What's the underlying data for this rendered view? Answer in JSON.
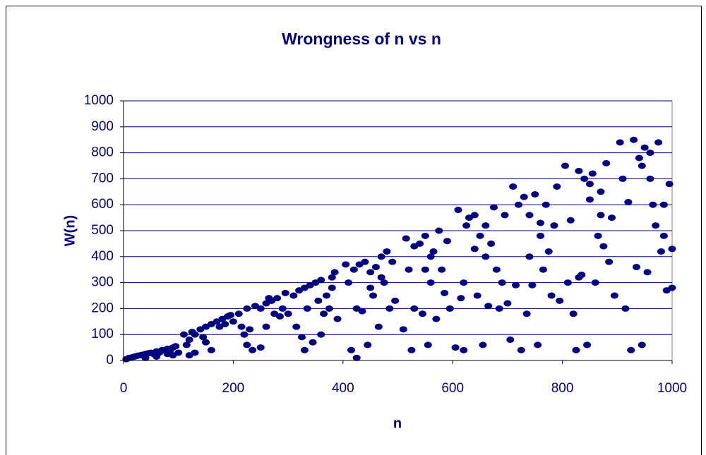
{
  "chart_data": {
    "type": "scatter",
    "title": "Wrongness of n vs n",
    "xlabel": "n",
    "ylabel": "W(n)",
    "color": "#000080",
    "grid": true,
    "xlim": [
      0,
      1000
    ],
    "ylim": [
      0,
      1000
    ],
    "xticks": [
      0,
      200,
      400,
      600,
      800,
      1000
    ],
    "yticks": [
      0,
      100,
      200,
      300,
      400,
      500,
      600,
      700,
      800,
      900,
      1000
    ],
    "x": [
      5,
      10,
      15,
      20,
      25,
      30,
      35,
      40,
      45,
      50,
      55,
      60,
      65,
      70,
      75,
      80,
      85,
      90,
      95,
      100,
      90,
      60,
      40,
      80,
      110,
      115,
      120,
      125,
      130,
      140,
      150,
      160,
      170,
      180,
      190,
      200,
      130,
      150,
      160,
      175,
      185,
      120,
      195,
      145,
      210,
      215,
      220,
      225,
      230,
      240,
      250,
      260,
      270,
      280,
      290,
      295,
      250,
      235,
      260,
      275,
      285,
      265,
      225,
      300,
      310,
      320,
      330,
      340,
      350,
      360,
      370,
      380,
      385,
      390,
      315,
      325,
      335,
      345,
      355,
      365,
      375,
      330,
      360,
      380,
      405,
      410,
      420,
      425,
      430,
      440,
      450,
      460,
      470,
      480,
      490,
      415,
      425,
      435,
      445,
      455,
      465,
      475,
      485,
      495,
      450,
      470,
      510,
      515,
      520,
      525,
      530,
      540,
      545,
      550,
      555,
      560,
      565,
      570,
      575,
      580,
      585,
      590,
      595,
      560,
      530,
      550,
      605,
      610,
      615,
      620,
      625,
      630,
      640,
      645,
      650,
      655,
      660,
      665,
      670,
      675,
      680,
      685,
      690,
      695,
      700,
      640,
      660,
      620,
      705,
      710,
      715,
      720,
      725,
      730,
      735,
      740,
      745,
      750,
      755,
      760,
      765,
      770,
      775,
      780,
      785,
      790,
      795,
      760,
      740,
      805,
      810,
      815,
      820,
      825,
      830,
      835,
      840,
      845,
      850,
      855,
      860,
      865,
      870,
      875,
      880,
      885,
      890,
      895,
      850,
      830,
      870,
      905,
      910,
      915,
      920,
      925,
      930,
      935,
      940,
      945,
      950,
      955,
      960,
      965,
      970,
      975,
      980,
      985,
      990,
      995,
      1000,
      945,
      960,
      985,
      1000
    ],
    "values": [
      5,
      10,
      12,
      15,
      18,
      20,
      22,
      25,
      28,
      30,
      25,
      35,
      30,
      40,
      38,
      45,
      40,
      50,
      55,
      30,
      20,
      15,
      10,
      25,
      100,
      60,
      80,
      110,
      100,
      120,
      130,
      140,
      150,
      160,
      170,
      150,
      30,
      70,
      40,
      130,
      140,
      20,
      175,
      90,
      180,
      130,
      100,
      200,
      120,
      210,
      200,
      220,
      230,
      240,
      200,
      260,
      50,
      40,
      130,
      180,
      170,
      240,
      60,
      180,
      250,
      270,
      280,
      290,
      300,
      310,
      250,
      320,
      340,
      160,
      130,
      90,
      200,
      70,
      230,
      180,
      200,
      40,
      100,
      280,
      370,
      300,
      350,
      200,
      370,
      380,
      340,
      360,
      400,
      420,
      380,
      40,
      10,
      190,
      60,
      250,
      130,
      300,
      200,
      230,
      280,
      320,
      120,
      470,
      350,
      40,
      200,
      450,
      180,
      480,
      60,
      300,
      420,
      160,
      500,
      350,
      260,
      460,
      200,
      400,
      440,
      350,
      50,
      580,
      240,
      40,
      520,
      550,
      560,
      250,
      480,
      60,
      520,
      210,
      450,
      590,
      350,
      200,
      300,
      560,
      220,
      430,
      400,
      300,
      80,
      670,
      290,
      600,
      40,
      630,
      180,
      560,
      290,
      640,
      60,
      480,
      350,
      600,
      420,
      250,
      520,
      670,
      230,
      530,
      400,
      750,
      300,
      540,
      180,
      40,
      730,
      330,
      700,
      60,
      620,
      720,
      300,
      480,
      650,
      440,
      760,
      380,
      550,
      250,
      680,
      320,
      560,
      840,
      700,
      200,
      610,
      40,
      850,
      360,
      780,
      60,
      820,
      340,
      700,
      600,
      520,
      840,
      420,
      600,
      270,
      680,
      280,
      750,
      800,
      480,
      430
    ]
  }
}
